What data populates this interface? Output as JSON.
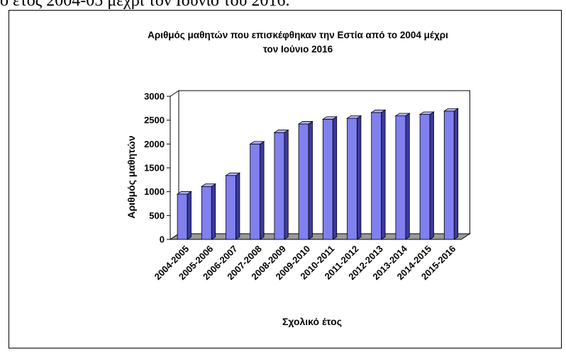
{
  "page": {
    "top_text": "ο έτος 2004-05 μέχρι τον Ιούνιο του 2016."
  },
  "chart_data": {
    "type": "bar",
    "title_lines": [
      "Αριθμός μαθητών που επισκέφθηκαν την Εστία  από το 2004 μέχρι",
      "τον Ιούνιο  2016"
    ],
    "xlabel": "Σχολικό έτος",
    "ylabel": "Αριθμός μαθητών",
    "categories": [
      "2004-2005",
      "2005-2006",
      "2006-2007",
      "2007-2008",
      "2008-2009",
      "2009-2010",
      "2010-2011",
      "2011-2012",
      "2012-2013",
      "2013-2014",
      "2014-2015",
      "2015-2016"
    ],
    "values": [
      950,
      1110,
      1340,
      2000,
      2240,
      2420,
      2520,
      2540,
      2660,
      2590,
      2620,
      2690
    ],
    "ylim": [
      0,
      3000
    ],
    "yticks": [
      0,
      500,
      1000,
      1500,
      2000,
      2500,
      3000
    ],
    "grid": false,
    "legend": "none",
    "colors": {
      "bar_front": "#8080ee",
      "bar_side": "#3a3aa0",
      "bar_top": "#b4b4ff",
      "floor": "#9a9a9a",
      "wall": "#ffffff"
    }
  }
}
